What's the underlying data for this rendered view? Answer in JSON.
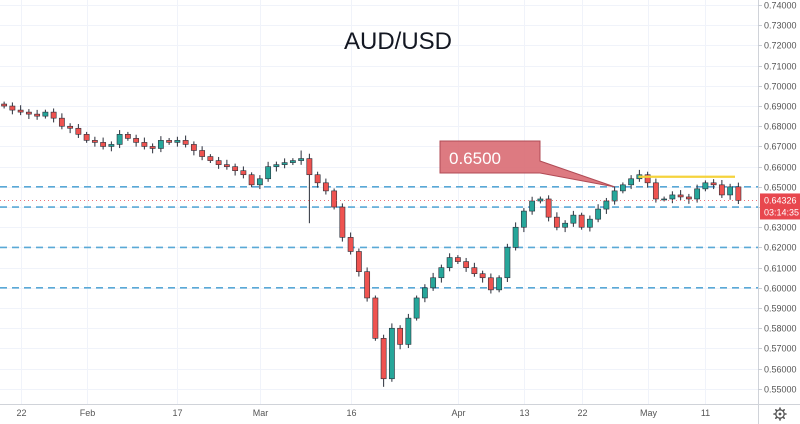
{
  "chart_data": {
    "type": "candlestick",
    "title": "AUD/USD",
    "ylim": [
      0.5425,
      0.7425
    ],
    "y_ticks": [
      "0.74000",
      "0.73000",
      "0.72000",
      "0.71000",
      "0.70000",
      "0.69000",
      "0.68000",
      "0.67000",
      "0.66000",
      "0.65000",
      "0.64000",
      "0.63000",
      "0.62000",
      "0.61000",
      "0.60000",
      "0.59000",
      "0.58000",
      "0.57000",
      "0.56000",
      "0.55000"
    ],
    "x_ticks": [
      {
        "label": "22",
        "i": 2
      },
      {
        "label": "Feb",
        "i": 10
      },
      {
        "label": "17",
        "i": 21
      },
      {
        "label": "Mar",
        "i": 31
      },
      {
        "label": "16",
        "i": 42
      },
      {
        "label": "Apr",
        "i": 55
      },
      {
        "label": "13",
        "i": 63
      },
      {
        "label": "22",
        "i": 70
      },
      {
        "label": "May",
        "i": 78
      },
      {
        "label": "11",
        "i": 85
      }
    ],
    "closes": [
      0.69,
      0.688,
      0.687,
      0.686,
      0.685,
      0.687,
      0.684,
      0.68,
      0.679,
      0.676,
      0.673,
      0.672,
      0.67,
      0.671,
      0.676,
      0.674,
      0.672,
      0.67,
      0.669,
      0.673,
      0.672,
      0.673,
      0.671,
      0.668,
      0.665,
      0.663,
      0.661,
      0.66,
      0.658,
      0.656,
      0.651,
      0.654,
      0.66,
      0.661,
      0.662,
      0.663,
      0.664,
      0.656,
      0.652,
      0.648,
      0.64,
      0.625,
      0.618,
      0.608,
      0.595,
      0.575,
      0.555,
      0.58,
      0.572,
      0.585,
      0.595,
      0.6,
      0.605,
      0.61,
      0.615,
      0.613,
      0.61,
      0.607,
      0.605,
      0.599,
      0.605,
      0.62,
      0.63,
      0.638,
      0.643,
      0.644,
      0.635,
      0.63,
      0.632,
      0.636,
      0.63,
      0.634,
      0.639,
      0.643,
      0.648,
      0.651,
      0.654,
      0.656,
      0.652,
      0.644,
      0.644,
      0.646,
      0.645,
      0.644,
      0.649,
      0.652,
      0.651,
      0.646,
      0.65,
      0.6433
    ],
    "levels": [
      0.65,
      0.64,
      0.62,
      0.6
    ],
    "resistance": 0.655,
    "last_price": "0.64326",
    "countdown": "03:14:35",
    "callout": {
      "label": "0.6500",
      "value": 0.65,
      "target_i": 74
    },
    "colors": {
      "up": "#26a69a",
      "down": "#ef5350",
      "levels": "#5aa9d6",
      "resistance": "#f5d33c",
      "callout_fill": "#d96b73",
      "tag": "#e8474e"
    }
  }
}
